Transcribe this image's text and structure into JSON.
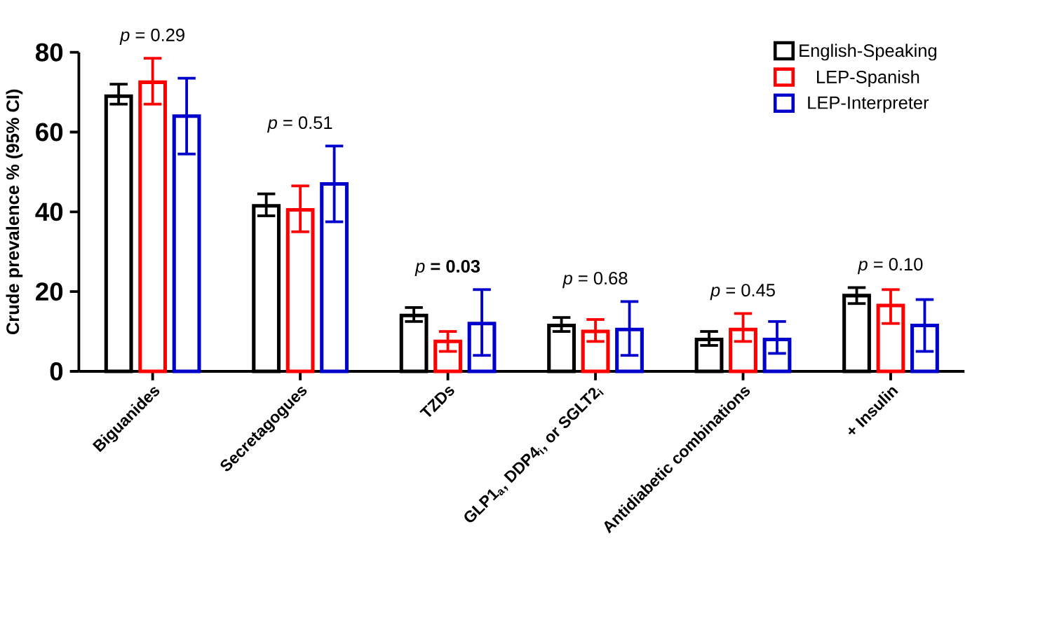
{
  "chart_data": {
    "type": "bar",
    "ylabel": "Crude prevalence % (95% CI)",
    "categories": [
      "Biguanides",
      "Secretagogues",
      "TZDs",
      "GLP1$_{a}$, DDP4$_{i}$, or SGLT2$_{i}$",
      "Antidiabetic combinations",
      "+ Insulin"
    ],
    "series": [
      {
        "name": "English-Speaking",
        "color": "#000000",
        "values": [
          69,
          41.5,
          14,
          11.5,
          8,
          19
        ],
        "errors": [
          [
            67,
            72
          ],
          [
            39,
            44.5
          ],
          [
            12.5,
            16
          ],
          [
            10,
            13.5
          ],
          [
            6.5,
            10
          ],
          [
            17,
            21
          ]
        ]
      },
      {
        "name": "LEP-Spanish",
        "color": "#ff0000",
        "values": [
          72.5,
          40.5,
          7.5,
          10,
          10.5,
          16.5
        ],
        "errors": [
          [
            67,
            78.5
          ],
          [
            35,
            46.5
          ],
          [
            5,
            10
          ],
          [
            7.5,
            13
          ],
          [
            7.5,
            14.5
          ],
          [
            12,
            20.5
          ]
        ]
      },
      {
        "name": "LEP-Interpreter",
        "color": "#0000cc",
        "values": [
          64,
          47,
          12,
          10.5,
          8,
          11.5
        ],
        "errors": [
          [
            54.5,
            73.5
          ],
          [
            37.5,
            56.5
          ],
          [
            4,
            20.5
          ],
          [
            4,
            17.5
          ],
          [
            4.5,
            12.5
          ],
          [
            5,
            18
          ]
        ]
      }
    ],
    "annotations": [
      "*p* = 0.29",
      "*p* = 0.51",
      "*p* **= 0.03**",
      "*p* = 0.68",
      "*p* = 0.45",
      "*p* = 0.10"
    ],
    "ylim": [
      0,
      80
    ],
    "yticks": [
      0,
      20,
      40,
      60,
      80
    ],
    "legend": "top right",
    "grid": false
  }
}
